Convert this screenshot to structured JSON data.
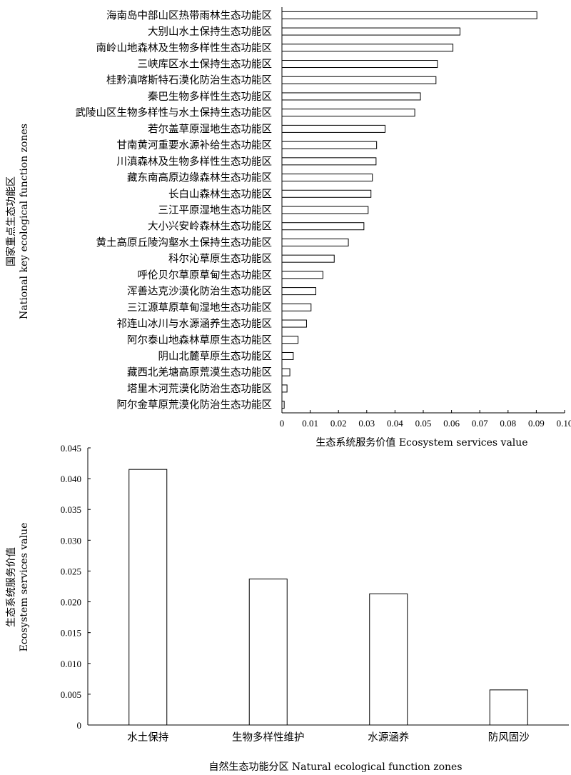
{
  "chart_data": [
    {
      "type": "bar",
      "orientation": "horizontal",
      "ylabel_cn": "国家重点生态功能区",
      "ylabel_en": "National key ecological function zones",
      "xlabel": "生态系统服务价值 Ecosystem services value",
      "xlim": [
        0,
        0.1
      ],
      "xticks": [
        "0",
        "0.01",
        "0.02",
        "0.03",
        "0.04",
        "0.05",
        "0.06",
        "0.07",
        "0.08",
        "0.09",
        "0.10"
      ],
      "categories": [
        "海南岛中部山区热带雨林生态功能区",
        "大别山水土保持生态功能区",
        "南岭山地森林及生物多样性生态功能区",
        "三峡库区水土保持生态功能区",
        "桂黔滇喀斯特石漠化防治生态功能区",
        "秦巴生物多样性生态功能区",
        "武陵山区生物多样性与水土保持生态功能区",
        "若尔盖草原湿地生态功能区",
        "甘南黄河重要水源补给生态功能区",
        "川滇森林及生物多样性生态功能区",
        "藏东南高原边缘森林生态功能区",
        "长白山森林生态功能区",
        "三江平原湿地生态功能区",
        "大小兴安岭森林生态功能区",
        "黄土高原丘陵沟壑水土保持生态功能区",
        "科尔沁草原生态功能区",
        "呼伦贝尔草原草甸生态功能区",
        "浑善达克沙漠化防治生态功能区",
        "三江源草原草甸湿地生态功能区",
        "祁连山冰川与水源涵养生态功能区",
        "阿尔泰山地森林草原生态功能区",
        "阴山北麓草原生态功能区",
        "藏西北羌塘高原荒漠生态功能区",
        "塔里木河荒漠化防治生态功能区",
        "阿尔金草原荒漠化防治生态功能区"
      ],
      "values": [
        0.0902,
        0.063,
        0.0605,
        0.055,
        0.0545,
        0.049,
        0.047,
        0.0365,
        0.0335,
        0.0333,
        0.032,
        0.0315,
        0.0305,
        0.029,
        0.0235,
        0.0185,
        0.0145,
        0.012,
        0.0103,
        0.0087,
        0.0057,
        0.004,
        0.0028,
        0.0018,
        0.0008
      ]
    },
    {
      "type": "bar",
      "orientation": "vertical",
      "ylabel_cn": "生态系统服务价值",
      "ylabel_en": "Ecosystem services value",
      "xlabel": "自然生态功能分区 Natural ecological function zones",
      "ylim": [
        0,
        0.045
      ],
      "yticks": [
        "0",
        "0.005",
        "0.010",
        "0.015",
        "0.020",
        "0.025",
        "0.030",
        "0.035",
        "0.040",
        "0.045"
      ],
      "categories": [
        "水土保持",
        "生物多样性维护",
        "水源涵养",
        "防风固沙"
      ],
      "values": [
        0.0415,
        0.0237,
        0.0213,
        0.0057
      ]
    }
  ]
}
